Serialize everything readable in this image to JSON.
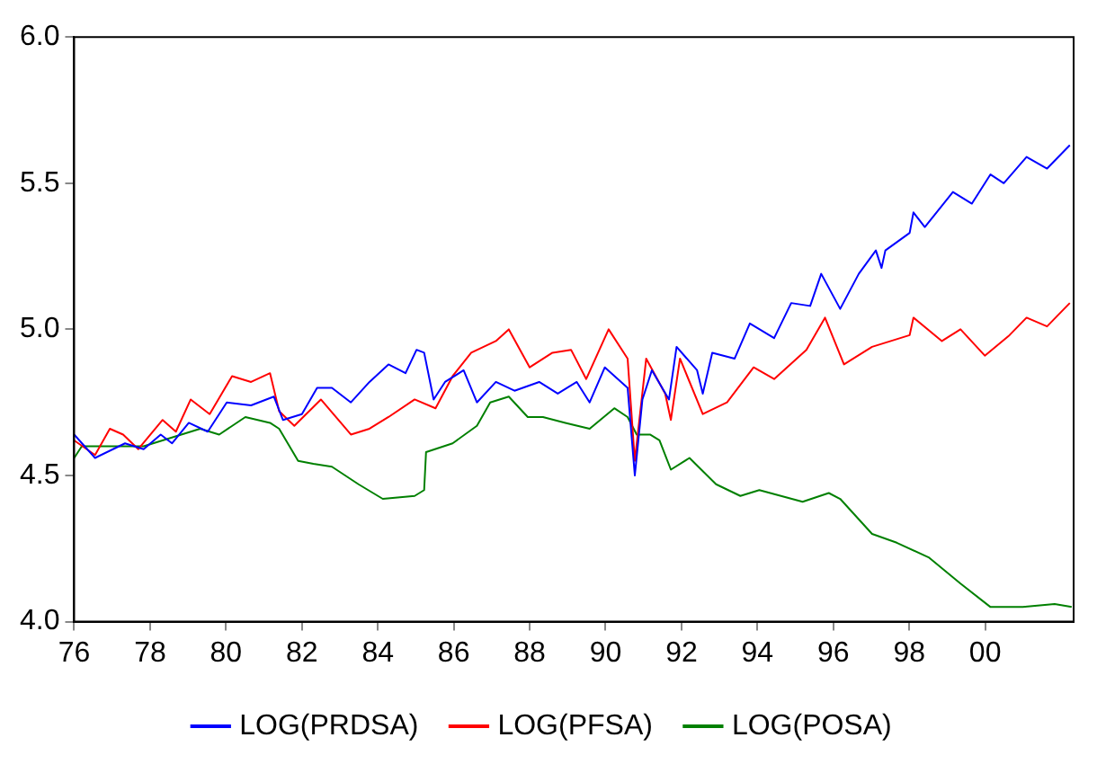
{
  "chart_data": {
    "type": "line",
    "xlim": [
      1976,
      2002.33
    ],
    "ylim": [
      4,
      6
    ],
    "xticks": [
      {
        "value": 1976,
        "label": "76"
      },
      {
        "value": 1978,
        "label": "78"
      },
      {
        "value": 1980,
        "label": "80"
      },
      {
        "value": 1982,
        "label": "82"
      },
      {
        "value": 1984,
        "label": "84"
      },
      {
        "value": 1986,
        "label": "86"
      },
      {
        "value": 1988,
        "label": "88"
      },
      {
        "value": 1990,
        "label": "90"
      },
      {
        "value": 1992,
        "label": "92"
      },
      {
        "value": 1994,
        "label": "94"
      },
      {
        "value": 1996,
        "label": "96"
      },
      {
        "value": 1998,
        "label": "98"
      },
      {
        "value": 2000,
        "label": "00"
      }
    ],
    "yticks": [
      {
        "value": 4,
        "label": "4.0"
      },
      {
        "value": 4.5,
        "label": "4.5"
      },
      {
        "value": 5,
        "label": "5.0"
      },
      {
        "value": 5.5,
        "label": "5.5"
      },
      {
        "value": 6,
        "label": "6.0"
      }
    ],
    "grid": false,
    "legend": "bottom",
    "marker": "none",
    "line_style": "solid",
    "series": [
      {
        "name": "LOG(PRDSA)",
        "color": "#0000ff",
        "x": [
          1976,
          1976.55,
          1977.34,
          1977.83,
          1978.28,
          1978.58,
          1979.02,
          1979.52,
          1980.02,
          1980.66,
          1981.26,
          1981.5,
          1982.0,
          1982.4,
          1982.79,
          1983.29,
          1983.78,
          1984.28,
          1984.73,
          1985.02,
          1985.22,
          1985.47,
          1985.77,
          1986.26,
          1986.61,
          1987.11,
          1987.6,
          1988.25,
          1988.74,
          1989.24,
          1989.58,
          1989.98,
          1990.58,
          1990.77,
          1990.97,
          1991.22,
          1991.67,
          1991.87,
          1992.41,
          1992.56,
          1992.81,
          1993.4,
          1993.8,
          1994.44,
          1994.89,
          1995.39,
          1995.68,
          1996.18,
          1996.67,
          1997.12,
          1997.27,
          1997.37,
          1998.01,
          1998.11,
          1998.41,
          1999.15,
          1999.65,
          2000.14,
          2000.49,
          2001.09,
          2001.63,
          2002.23
        ],
        "values": [
          4.64,
          4.56,
          4.61,
          4.59,
          4.64,
          4.61,
          4.68,
          4.65,
          4.75,
          4.74,
          4.77,
          4.69,
          4.71,
          4.8,
          4.8,
          4.75,
          4.82,
          4.88,
          4.85,
          4.93,
          4.92,
          4.76,
          4.82,
          4.86,
          4.75,
          4.82,
          4.79,
          4.82,
          4.78,
          4.82,
          4.75,
          4.87,
          4.8,
          4.5,
          4.76,
          4.86,
          4.76,
          4.94,
          4.86,
          4.78,
          4.92,
          4.9,
          5.02,
          4.97,
          5.09,
          5.08,
          5.19,
          5.07,
          5.19,
          5.27,
          5.21,
          5.27,
          5.33,
          5.4,
          5.35,
          5.47,
          5.43,
          5.53,
          5.5,
          5.59,
          5.55,
          5.63
        ]
      },
      {
        "name": "LOG(PFSA)",
        "color": "#ff0000",
        "x": [
          1976,
          1976.55,
          1976.94,
          1977.29,
          1977.69,
          1978.33,
          1978.68,
          1979.07,
          1979.57,
          1980.16,
          1980.66,
          1981.16,
          1981.4,
          1981.8,
          1982.5,
          1983.29,
          1983.78,
          1984.28,
          1984.97,
          1985.52,
          1985.97,
          1986.46,
          1987.11,
          1987.45,
          1988.0,
          1988.6,
          1989.09,
          1989.49,
          1990.08,
          1990.58,
          1990.77,
          1991.07,
          1991.57,
          1991.72,
          1991.96,
          1992.56,
          1993.2,
          1993.9,
          1994.44,
          1995.29,
          1995.78,
          1996.28,
          1997.02,
          1998.01,
          1998.11,
          1998.86,
          1999.35,
          1999.99,
          2000.64,
          2001.09,
          2001.63,
          2002.23
        ],
        "values": [
          4.62,
          4.57,
          4.66,
          4.64,
          4.59,
          4.69,
          4.65,
          4.76,
          4.71,
          4.84,
          4.82,
          4.85,
          4.72,
          4.67,
          4.76,
          4.64,
          4.66,
          4.7,
          4.76,
          4.73,
          4.84,
          4.92,
          4.96,
          5.0,
          4.87,
          4.92,
          4.93,
          4.83,
          5.0,
          4.9,
          4.55,
          4.9,
          4.78,
          4.69,
          4.9,
          4.71,
          4.75,
          4.87,
          4.83,
          4.93,
          5.04,
          4.88,
          4.94,
          4.98,
          5.04,
          4.96,
          5.0,
          4.91,
          4.98,
          5.04,
          5.01,
          5.09
        ]
      },
      {
        "name": "LOG(POSA)",
        "color": "#008000",
        "x": [
          1976,
          1976.2,
          1977.83,
          1979.32,
          1979.82,
          1980.51,
          1981.16,
          1981.4,
          1981.9,
          1982.3,
          1982.79,
          1983.49,
          1984.13,
          1984.97,
          1985.22,
          1985.27,
          1985.97,
          1986.61,
          1986.96,
          1987.45,
          1987.95,
          1988.35,
          1988.94,
          1989.58,
          1990.23,
          1990.58,
          1990.82,
          1991.17,
          1991.42,
          1991.72,
          1992.21,
          1992.91,
          1993.55,
          1994.05,
          1995.19,
          1995.88,
          1996.18,
          1997.02,
          1997.67,
          1998.51,
          1999.35,
          2000.14,
          2000.99,
          2001.83,
          2002.28
        ],
        "values": [
          4.56,
          4.6,
          4.6,
          4.66,
          4.64,
          4.7,
          4.68,
          4.66,
          4.55,
          4.54,
          4.53,
          4.47,
          4.42,
          4.43,
          4.45,
          4.58,
          4.61,
          4.67,
          4.75,
          4.77,
          4.7,
          4.7,
          4.68,
          4.66,
          4.73,
          4.7,
          4.64,
          4.64,
          4.62,
          4.52,
          4.56,
          4.47,
          4.43,
          4.45,
          4.41,
          4.44,
          4.42,
          4.3,
          4.27,
          4.22,
          4.13,
          4.05,
          4.05,
          4.06,
          4.05
        ]
      }
    ]
  }
}
